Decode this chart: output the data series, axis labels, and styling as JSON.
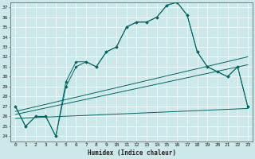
{
  "xlabel": "Humidex (Indice chaleur)",
  "bg_color": "#cce8e8",
  "grid_color": "#ffffff",
  "line_color": "#006666",
  "xlim": [
    -0.5,
    23.5
  ],
  "ylim": [
    23.5,
    37.5
  ],
  "xticks": [
    0,
    1,
    2,
    3,
    4,
    5,
    6,
    7,
    8,
    9,
    10,
    11,
    12,
    13,
    14,
    15,
    16,
    17,
    18,
    19,
    20,
    21,
    22,
    23
  ],
  "yticks": [
    24,
    25,
    26,
    27,
    28,
    29,
    30,
    31,
    32,
    33,
    34,
    35,
    36,
    37
  ],
  "line1_x": [
    0,
    1,
    2,
    3,
    4,
    5,
    6,
    7,
    8,
    9,
    10,
    11,
    12,
    13,
    14,
    15,
    16,
    17,
    18,
    19,
    20,
    21,
    22,
    23
  ],
  "line1_y": [
    27,
    25,
    26,
    26,
    24,
    29,
    31,
    31.5,
    31,
    32.5,
    33,
    35,
    35.5,
    35.5,
    36,
    37.2,
    37.5,
    36.2,
    32.5,
    31,
    30.5,
    30,
    31,
    27
  ],
  "line2_x": [
    0,
    1,
    2,
    3,
    4,
    5,
    6,
    7,
    8,
    9,
    10,
    11,
    12,
    13,
    14,
    15,
    16,
    17,
    18,
    19,
    20,
    21,
    22,
    23
  ],
  "line2_y": [
    27,
    25,
    26,
    26,
    24,
    29.5,
    31.5,
    31.5,
    31,
    32.5,
    33,
    35,
    35.5,
    35.5,
    36,
    37.2,
    37.5,
    36.2,
    32.5,
    31,
    30.5,
    30,
    31,
    27
  ],
  "trend1_x": [
    0,
    23
  ],
  "trend1_y": [
    26.5,
    32.0
  ],
  "trend2_x": [
    0,
    23
  ],
  "trend2_y": [
    26.2,
    31.2
  ],
  "trend3_x": [
    0,
    23
  ],
  "trend3_y": [
    25.8,
    26.8
  ]
}
